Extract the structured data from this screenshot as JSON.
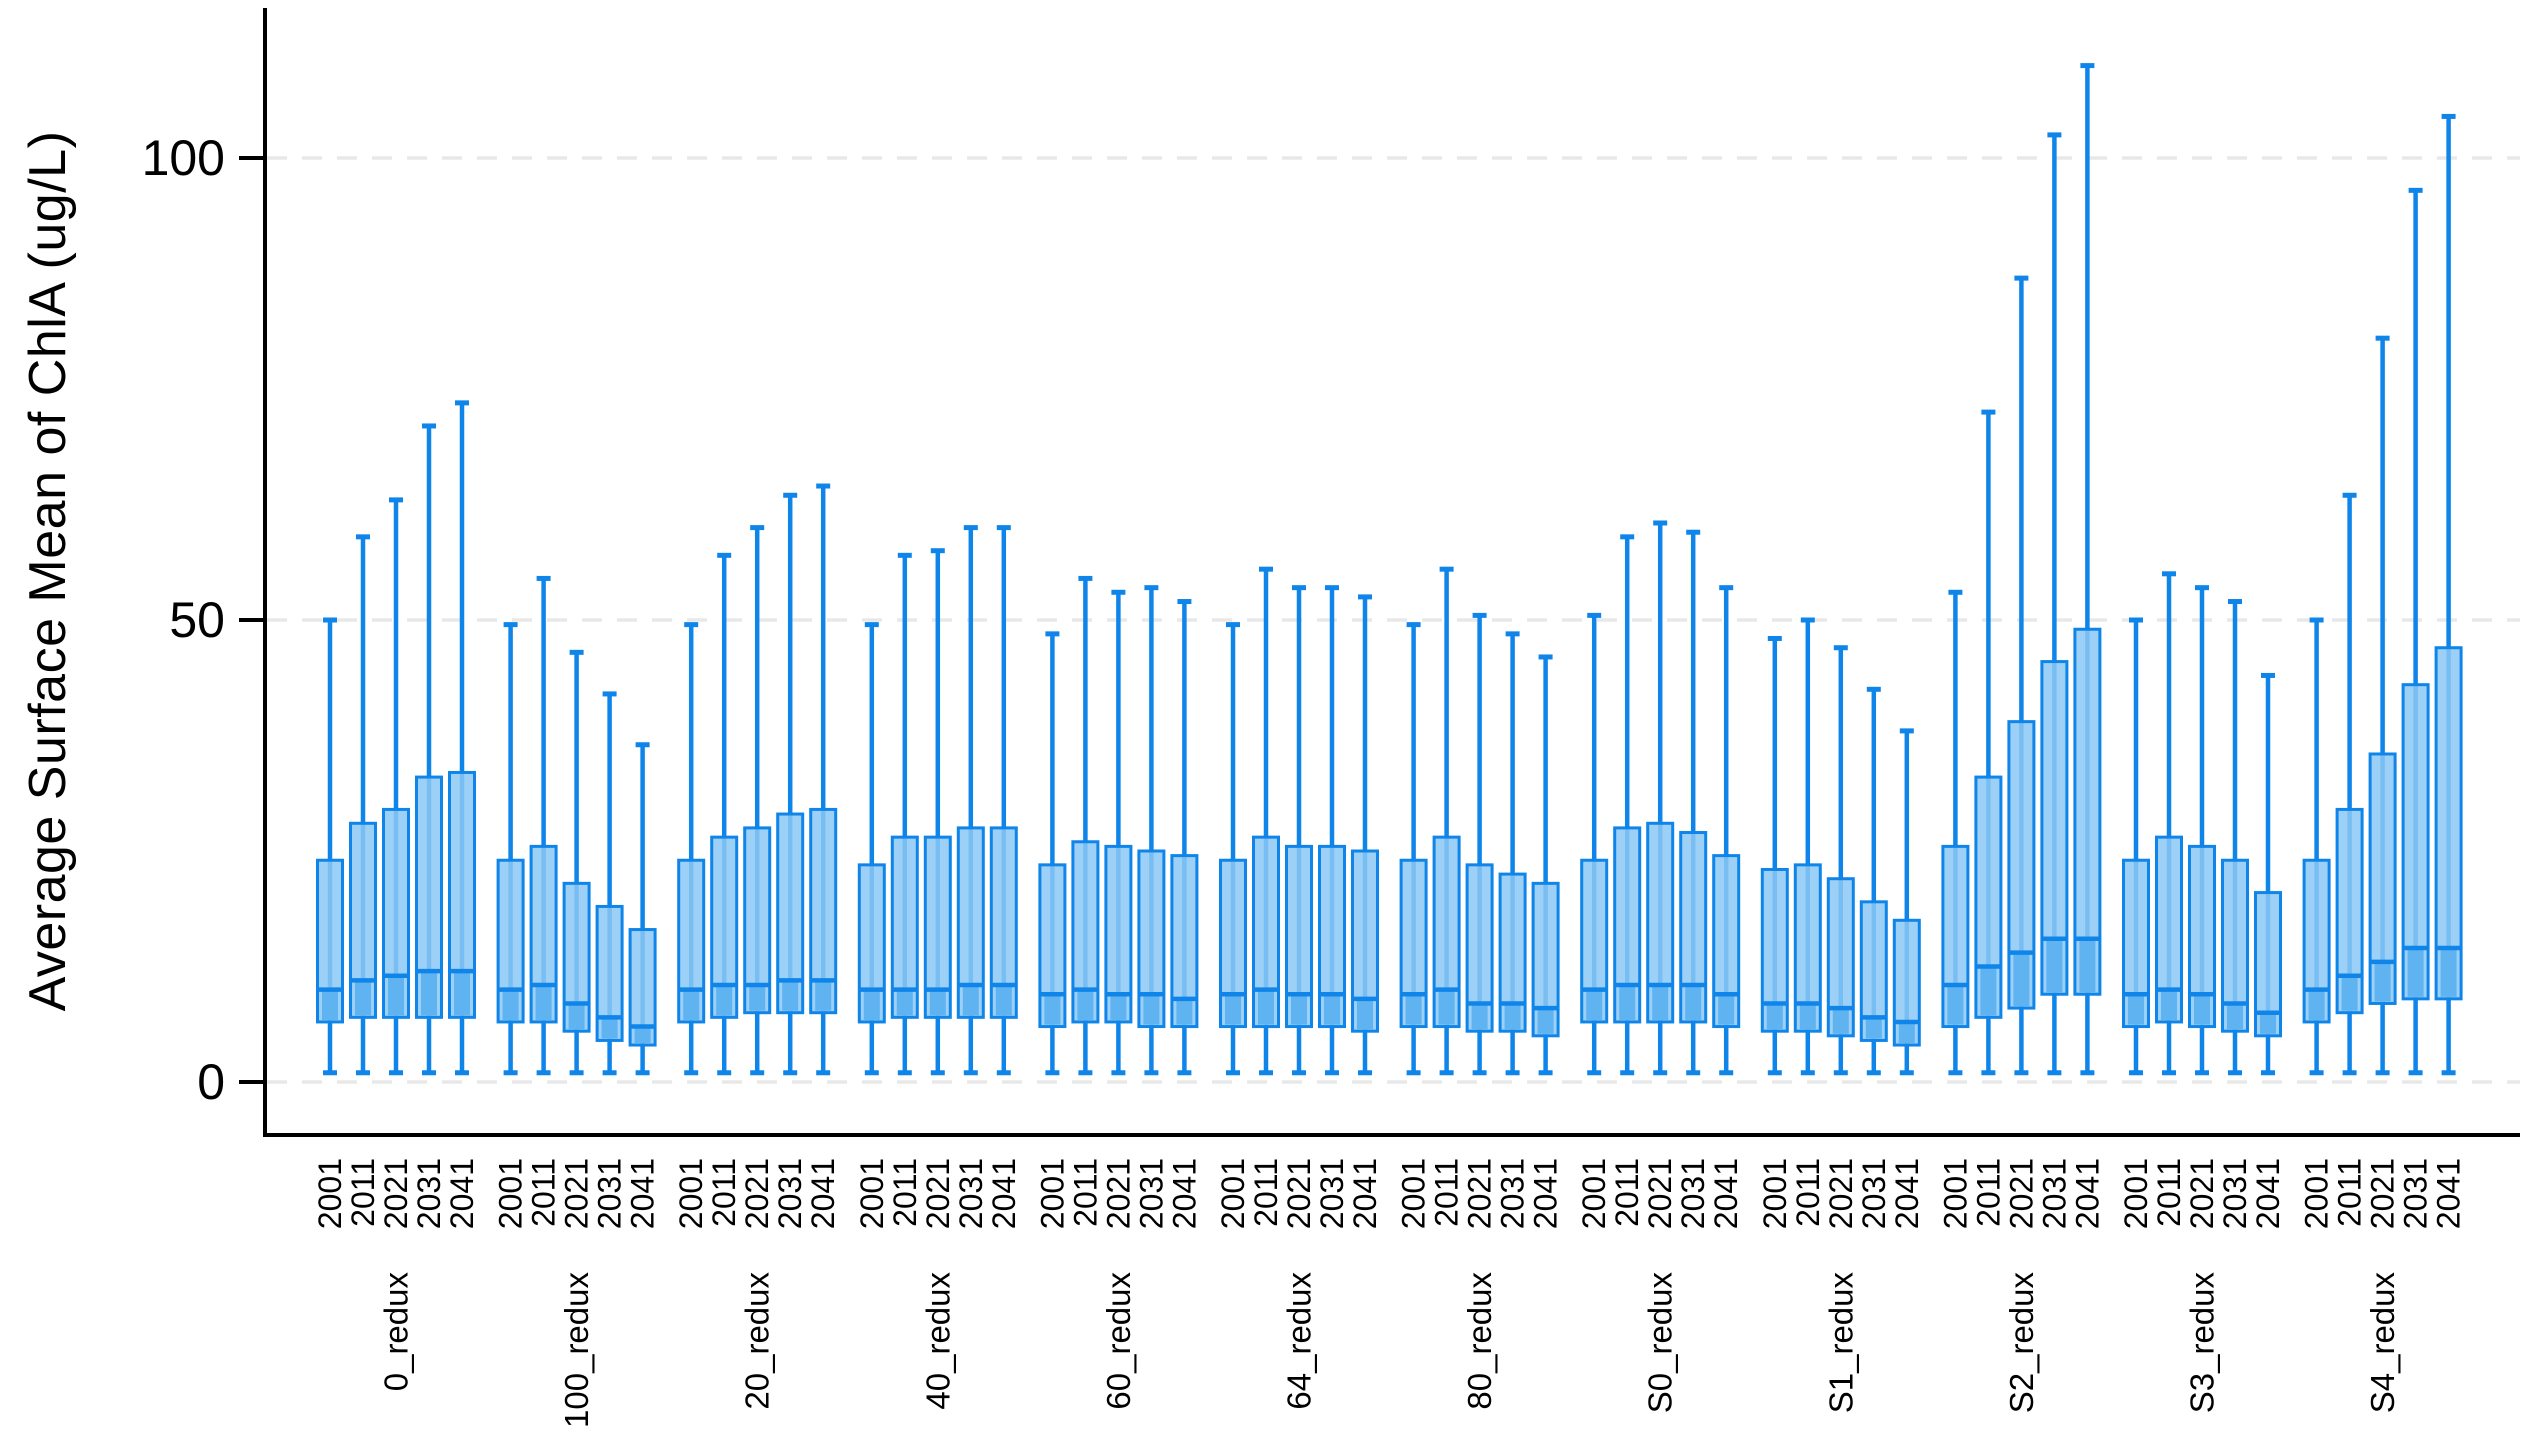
{
  "chart_data": {
    "type": "boxplot",
    "title": "",
    "ylabel": "Average Surface Mean of ChlA (ug/L)",
    "xlabel": "",
    "yticks": [
      0,
      50,
      100
    ],
    "ylim": [
      -6,
      116
    ],
    "grid": "horizontal dashed lines at y ticks, legend none",
    "box_schema": [
      "whisker_low",
      "q1",
      "median",
      "q3",
      "whisker_high"
    ],
    "years": [
      "2001",
      "2011",
      "2021",
      "2031",
      "2041"
    ],
    "groups": [
      {
        "label": "0_redux",
        "boxes": [
          [
            1,
            6.5,
            10,
            24,
            50
          ],
          [
            1,
            7,
            11,
            28,
            59
          ],
          [
            1,
            7,
            11.5,
            29.5,
            63
          ],
          [
            1,
            7,
            12,
            33,
            71
          ],
          [
            1,
            7,
            12,
            33.5,
            73.5
          ]
        ]
      },
      {
        "label": "100_redux",
        "boxes": [
          [
            1,
            6.5,
            10,
            24,
            49.5
          ],
          [
            1,
            6.5,
            10.5,
            25.5,
            54.5
          ],
          [
            1,
            5.5,
            8.5,
            21.5,
            46.5
          ],
          [
            1,
            4.5,
            7,
            19,
            42
          ],
          [
            1,
            4,
            6,
            16.5,
            36.5
          ]
        ]
      },
      {
        "label": "20_redux",
        "boxes": [
          [
            1,
            6.5,
            10,
            24,
            49.5
          ],
          [
            1,
            7,
            10.5,
            26.5,
            57
          ],
          [
            1,
            7.5,
            10.5,
            27.5,
            60
          ],
          [
            1,
            7.5,
            11,
            29,
            63.5
          ],
          [
            1,
            7.5,
            11,
            29.5,
            64.5
          ]
        ]
      },
      {
        "label": "40_redux",
        "boxes": [
          [
            1,
            6.5,
            10,
            23.5,
            49.5
          ],
          [
            1,
            7,
            10,
            26.5,
            57
          ],
          [
            1,
            7,
            10,
            26.5,
            57.5
          ],
          [
            1,
            7,
            10.5,
            27.5,
            60
          ],
          [
            1,
            7,
            10.5,
            27.5,
            60
          ]
        ]
      },
      {
        "label": "60_redux",
        "boxes": [
          [
            1,
            6,
            9.5,
            23.5,
            48.5
          ],
          [
            1,
            6.5,
            10,
            26,
            54.5
          ],
          [
            1,
            6.5,
            9.5,
            25.5,
            53
          ],
          [
            1,
            6,
            9.5,
            25,
            53.5
          ],
          [
            1,
            6,
            9,
            24.5,
            52
          ]
        ]
      },
      {
        "label": "64_redux",
        "boxes": [
          [
            1,
            6,
            9.5,
            24,
            49.5
          ],
          [
            1,
            6,
            10,
            26.5,
            55.5
          ],
          [
            1,
            6,
            9.5,
            25.5,
            53.5
          ],
          [
            1,
            6,
            9.5,
            25.5,
            53.5
          ],
          [
            1,
            5.5,
            9,
            25,
            52.5
          ]
        ]
      },
      {
        "label": "80_redux",
        "boxes": [
          [
            1,
            6,
            9.5,
            24,
            49.5
          ],
          [
            1,
            6,
            10,
            26.5,
            55.5
          ],
          [
            1,
            5.5,
            8.5,
            23.5,
            50.5
          ],
          [
            1,
            5.5,
            8.5,
            22.5,
            48.5
          ],
          [
            1,
            5,
            8,
            21.5,
            46
          ]
        ]
      },
      {
        "label": "S0_redux",
        "boxes": [
          [
            1,
            6.5,
            10,
            24,
            50.5
          ],
          [
            1,
            6.5,
            10.5,
            27.5,
            59
          ],
          [
            1,
            6.5,
            10.5,
            28,
            60.5
          ],
          [
            1,
            6.5,
            10.5,
            27,
            59.5
          ],
          [
            1,
            6,
            9.5,
            24.5,
            53.5
          ]
        ]
      },
      {
        "label": "S1_redux",
        "boxes": [
          [
            1,
            5.5,
            8.5,
            23,
            48
          ],
          [
            1,
            5.5,
            8.5,
            23.5,
            50
          ],
          [
            1,
            5,
            8,
            22,
            47
          ],
          [
            1,
            4.5,
            7,
            19.5,
            42.5
          ],
          [
            1,
            4,
            6.5,
            17.5,
            38
          ]
        ]
      },
      {
        "label": "S2_redux",
        "boxes": [
          [
            1,
            6,
            10.5,
            25.5,
            53
          ],
          [
            1,
            7,
            12.5,
            33,
            72.5
          ],
          [
            1,
            8,
            14,
            39,
            87
          ],
          [
            1,
            9.5,
            15.5,
            45.5,
            102.5
          ],
          [
            1,
            9.5,
            15.5,
            49,
            110
          ]
        ]
      },
      {
        "label": "S3_redux",
        "boxes": [
          [
            1,
            6,
            9.5,
            24,
            50
          ],
          [
            1,
            6.5,
            10,
            26.5,
            55
          ],
          [
            1,
            6,
            9.5,
            25.5,
            53.5
          ],
          [
            1,
            5.5,
            8.5,
            24,
            52
          ],
          [
            1,
            5,
            7.5,
            20.5,
            44
          ]
        ]
      },
      {
        "label": "S4_redux",
        "boxes": [
          [
            1,
            6.5,
            10,
            24,
            50
          ],
          [
            1,
            7.5,
            11.5,
            29.5,
            63.5
          ],
          [
            1,
            8.5,
            13,
            35.5,
            80.5
          ],
          [
            1,
            9,
            14.5,
            43,
            96.5
          ],
          [
            1,
            9,
            14.5,
            47,
            104.5
          ]
        ]
      }
    ],
    "colors": {
      "box_border": "#0F85EA",
      "box_fill": "#8CC8F5",
      "box_fill_lower": "#5FB3F0",
      "gridline": "#E8E8E8",
      "axis": "#000000",
      "text": "#000000",
      "background": "#FFFFFF"
    }
  }
}
